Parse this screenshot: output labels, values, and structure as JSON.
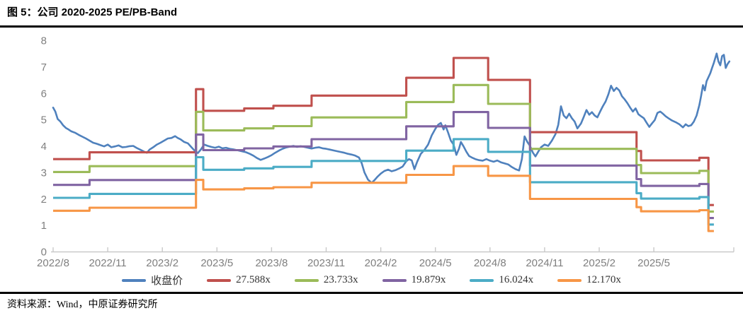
{
  "header": {
    "title": "图 5：公司 2020-2025 PE/PB-Band"
  },
  "footer": {
    "source": "资料来源：Wind，中原证券研究所"
  },
  "chart_data": {
    "type": "line",
    "title": "公司 2020-2025 PE/PB-Band",
    "xlabel": "",
    "ylabel": "",
    "ylim": [
      0,
      8
    ],
    "y_ticks": [
      0,
      1,
      2,
      3,
      4,
      5,
      6,
      7,
      8
    ],
    "x_tick_labels": [
      "2022/8",
      "2022/11",
      "2023/2",
      "2023/5",
      "2023/8",
      "2023/11",
      "2024/2",
      "2024/5",
      "2024/8",
      "2024/11",
      "2025/2",
      "2025/5"
    ],
    "x_tick_months": [
      0,
      3,
      6,
      9,
      12,
      15,
      18,
      21,
      24,
      27,
      30,
      33
    ],
    "grid": false,
    "legend_position": "bottom",
    "colors": {
      "price": "#4F81BD",
      "band_27": "#C0504D",
      "band_23": "#9BBB59",
      "band_19": "#8064A2",
      "band_16": "#4BACC6",
      "band_12": "#F79646",
      "axis_line": "#C9C9C9",
      "axis_label": "#7F7F7F"
    },
    "price_series": {
      "name": "收盘价",
      "color": "#4F81BD",
      "points": [
        [
          0,
          5.45
        ],
        [
          0.12,
          5.3
        ],
        [
          0.25,
          5.02
        ],
        [
          0.4,
          4.92
        ],
        [
          0.55,
          4.78
        ],
        [
          0.7,
          4.68
        ],
        [
          0.85,
          4.62
        ],
        [
          1.0,
          4.55
        ],
        [
          1.2,
          4.5
        ],
        [
          1.4,
          4.42
        ],
        [
          1.6,
          4.35
        ],
        [
          1.8,
          4.28
        ],
        [
          2.0,
          4.2
        ],
        [
          2.2,
          4.12
        ],
        [
          2.4,
          4.08
        ],
        [
          2.6,
          4.03
        ],
        [
          2.8,
          3.98
        ],
        [
          3.0,
          4.05
        ],
        [
          3.2,
          3.95
        ],
        [
          3.4,
          3.98
        ],
        [
          3.6,
          4.02
        ],
        [
          3.8,
          3.95
        ],
        [
          4.0,
          3.96
        ],
        [
          4.2,
          3.99
        ],
        [
          4.4,
          4.0
        ],
        [
          4.6,
          3.92
        ],
        [
          4.8,
          3.85
        ],
        [
          5.0,
          3.78
        ],
        [
          5.15,
          3.74
        ],
        [
          5.3,
          3.86
        ],
        [
          5.5,
          3.95
        ],
        [
          5.7,
          4.05
        ],
        [
          5.9,
          4.12
        ],
        [
          6.1,
          4.2
        ],
        [
          6.3,
          4.28
        ],
        [
          6.5,
          4.3
        ],
        [
          6.7,
          4.37
        ],
        [
          6.85,
          4.3
        ],
        [
          7.0,
          4.25
        ],
        [
          7.2,
          4.15
        ],
        [
          7.4,
          4.1
        ],
        [
          7.6,
          3.95
        ],
        [
          7.8,
          3.8
        ],
        [
          7.95,
          3.73
        ],
        [
          8.1,
          3.85
        ],
        [
          8.3,
          4.05
        ],
        [
          8.5,
          4.0
        ],
        [
          8.7,
          3.96
        ],
        [
          8.9,
          3.93
        ],
        [
          9.1,
          3.97
        ],
        [
          9.3,
          3.91
        ],
        [
          9.5,
          3.93
        ],
        [
          9.7,
          3.89
        ],
        [
          9.9,
          3.87
        ],
        [
          10.1,
          3.84
        ],
        [
          10.35,
          3.8
        ],
        [
          10.6,
          3.76
        ],
        [
          10.8,
          3.7
        ],
        [
          11.0,
          3.63
        ],
        [
          11.2,
          3.54
        ],
        [
          11.4,
          3.47
        ],
        [
          11.6,
          3.52
        ],
        [
          11.8,
          3.58
        ],
        [
          12.0,
          3.65
        ],
        [
          12.2,
          3.74
        ],
        [
          12.4,
          3.82
        ],
        [
          12.6,
          3.89
        ],
        [
          12.8,
          3.94
        ],
        [
          13.0,
          3.97
        ],
        [
          13.2,
          4.0
        ],
        [
          13.4,
          3.96
        ],
        [
          13.6,
          3.99
        ],
        [
          13.8,
          3.96
        ],
        [
          14.0,
          3.93
        ],
        [
          14.2,
          3.9
        ],
        [
          14.4,
          3.93
        ],
        [
          14.6,
          3.95
        ],
        [
          14.8,
          3.91
        ],
        [
          15.0,
          3.89
        ],
        [
          15.2,
          3.86
        ],
        [
          15.4,
          3.83
        ],
        [
          15.6,
          3.8
        ],
        [
          15.8,
          3.77
        ],
        [
          16.0,
          3.74
        ],
        [
          16.2,
          3.7
        ],
        [
          16.4,
          3.67
        ],
        [
          16.6,
          3.63
        ],
        [
          16.8,
          3.56
        ],
        [
          16.95,
          3.35
        ],
        [
          17.1,
          3.0
        ],
        [
          17.3,
          2.72
        ],
        [
          17.5,
          2.6
        ],
        [
          17.65,
          2.7
        ],
        [
          17.8,
          2.82
        ],
        [
          18.0,
          2.95
        ],
        [
          18.2,
          3.05
        ],
        [
          18.4,
          3.1
        ],
        [
          18.6,
          3.04
        ],
        [
          18.8,
          3.08
        ],
        [
          19.0,
          3.14
        ],
        [
          19.2,
          3.22
        ],
        [
          19.4,
          3.42
        ],
        [
          19.55,
          3.5
        ],
        [
          19.7,
          3.45
        ],
        [
          19.85,
          3.12
        ],
        [
          20.0,
          3.4
        ],
        [
          20.2,
          3.7
        ],
        [
          20.4,
          3.85
        ],
        [
          20.6,
          4.05
        ],
        [
          20.8,
          4.4
        ],
        [
          21.0,
          4.65
        ],
        [
          21.15,
          4.8
        ],
        [
          21.3,
          4.87
        ],
        [
          21.45,
          4.62
        ],
        [
          21.55,
          4.78
        ],
        [
          21.7,
          4.5
        ],
        [
          21.85,
          4.2
        ],
        [
          22.0,
          4.05
        ],
        [
          22.15,
          3.66
        ],
        [
          22.3,
          3.9
        ],
        [
          22.4,
          4.15
        ],
        [
          22.55,
          3.98
        ],
        [
          22.7,
          3.78
        ],
        [
          22.85,
          3.62
        ],
        [
          23.0,
          3.56
        ],
        [
          23.2,
          3.5
        ],
        [
          23.4,
          3.46
        ],
        [
          23.6,
          3.44
        ],
        [
          23.8,
          3.5
        ],
        [
          24.0,
          3.44
        ],
        [
          24.2,
          3.4
        ],
        [
          24.4,
          3.45
        ],
        [
          24.6,
          3.38
        ],
        [
          24.8,
          3.34
        ],
        [
          25.0,
          3.3
        ],
        [
          25.2,
          3.2
        ],
        [
          25.4,
          3.12
        ],
        [
          25.6,
          3.07
        ],
        [
          25.75,
          3.5
        ],
        [
          25.9,
          4.36
        ],
        [
          26.05,
          4.15
        ],
        [
          26.2,
          4.0
        ],
        [
          26.35,
          3.75
        ],
        [
          26.5,
          3.6
        ],
        [
          26.65,
          3.78
        ],
        [
          26.8,
          3.95
        ],
        [
          27.0,
          4.05
        ],
        [
          27.2,
          4.0
        ],
        [
          27.4,
          4.2
        ],
        [
          27.6,
          4.45
        ],
        [
          27.75,
          4.8
        ],
        [
          27.9,
          5.5
        ],
        [
          28.05,
          5.15
        ],
        [
          28.2,
          5.05
        ],
        [
          28.35,
          5.22
        ],
        [
          28.5,
          5.05
        ],
        [
          28.65,
          4.92
        ],
        [
          28.8,
          4.66
        ],
        [
          29.0,
          4.85
        ],
        [
          29.15,
          5.1
        ],
        [
          29.3,
          5.36
        ],
        [
          29.45,
          5.18
        ],
        [
          29.6,
          5.28
        ],
        [
          29.75,
          5.15
        ],
        [
          29.9,
          5.08
        ],
        [
          30.05,
          5.3
        ],
        [
          30.2,
          5.5
        ],
        [
          30.35,
          5.68
        ],
        [
          30.5,
          5.95
        ],
        [
          30.65,
          6.28
        ],
        [
          30.8,
          6.08
        ],
        [
          30.95,
          6.2
        ],
        [
          31.1,
          6.1
        ],
        [
          31.25,
          5.88
        ],
        [
          31.4,
          5.76
        ],
        [
          31.55,
          5.62
        ],
        [
          31.7,
          5.45
        ],
        [
          31.85,
          5.3
        ],
        [
          32.0,
          5.42
        ],
        [
          32.15,
          5.2
        ],
        [
          32.3,
          5.12
        ],
        [
          32.45,
          5.05
        ],
        [
          32.6,
          4.88
        ],
        [
          32.75,
          4.72
        ],
        [
          32.9,
          4.85
        ],
        [
          33.05,
          4.98
        ],
        [
          33.2,
          5.25
        ],
        [
          33.35,
          5.3
        ],
        [
          33.5,
          5.22
        ],
        [
          33.65,
          5.12
        ],
        [
          33.8,
          5.05
        ],
        [
          34.0,
          4.96
        ],
        [
          34.2,
          4.9
        ],
        [
          34.4,
          4.82
        ],
        [
          34.6,
          4.7
        ],
        [
          34.75,
          4.82
        ],
        [
          34.9,
          4.75
        ],
        [
          35.05,
          4.78
        ],
        [
          35.2,
          4.92
        ],
        [
          35.35,
          5.15
        ],
        [
          35.5,
          5.55
        ],
        [
          35.6,
          5.9
        ],
        [
          35.7,
          6.3
        ],
        [
          35.8,
          6.1
        ],
        [
          35.9,
          6.45
        ],
        [
          36.0,
          6.6
        ],
        [
          36.1,
          6.75
        ],
        [
          36.2,
          6.95
        ],
        [
          36.3,
          7.15
        ],
        [
          36.45,
          7.5
        ],
        [
          36.55,
          7.2
        ],
        [
          36.65,
          7.05
        ],
        [
          36.75,
          7.4
        ],
        [
          36.85,
          7.45
        ],
        [
          36.95,
          6.95
        ],
        [
          37.05,
          7.1
        ],
        [
          37.15,
          7.2
        ]
      ]
    },
    "pe_bands": {
      "note": "band value = base_eps x multiplier; step series",
      "base_breakpoints": [
        [
          0,
          0.1269
        ],
        [
          2.0,
          0.1362
        ],
        [
          7.85,
          0.2229
        ],
        [
          8.25,
          0.1932
        ],
        [
          10.5,
          0.1965
        ],
        [
          12.1,
          0.2001
        ],
        [
          14.2,
          0.214
        ],
        [
          19.4,
          0.2385
        ],
        [
          22.0,
          0.2657
        ],
        [
          23.9,
          0.2356
        ],
        [
          26.2,
          0.1638
        ],
        [
          32.05,
          0.138
        ],
        [
          32.3,
          0.1251
        ],
        [
          35.5,
          0.1287
        ],
        [
          36.0,
          0.0638
        ]
      ],
      "band_end_month": 36.3,
      "bands": [
        {
          "name": "27.588x",
          "multiplier": 27.588,
          "color": "#C0504D"
        },
        {
          "name": "23.733x",
          "multiplier": 23.733,
          "color": "#9BBB59"
        },
        {
          "name": "19.879x",
          "multiplier": 19.879,
          "color": "#8064A2"
        },
        {
          "name": "16.024x",
          "multiplier": 16.024,
          "color": "#4BACC6"
        },
        {
          "name": "12.170x",
          "multiplier": 12.17,
          "color": "#F79646"
        }
      ]
    },
    "legend": [
      {
        "label": "收盘价",
        "color": "#4F81BD"
      },
      {
        "label": "27.588x",
        "color": "#C0504D"
      },
      {
        "label": "23.733x",
        "color": "#9BBB59"
      },
      {
        "label": "19.879x",
        "color": "#8064A2"
      },
      {
        "label": "16.024x",
        "color": "#4BACC6"
      },
      {
        "label": "12.170x",
        "color": "#F79646"
      }
    ]
  }
}
